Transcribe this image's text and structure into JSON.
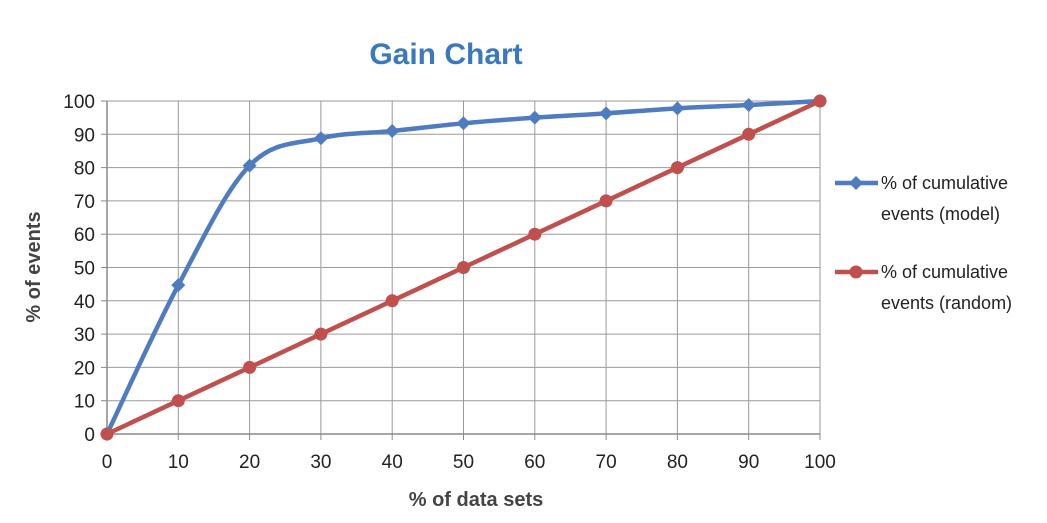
{
  "colors": {
    "title": "#3a78c0",
    "model": "#4f7bc0",
    "random": "#c0504d",
    "grid": "#9a9a9a",
    "axis": "#8a8a8a"
  },
  "chart_data": {
    "type": "line",
    "title": "Gain Chart",
    "xlabel": "% of data sets",
    "ylabel": "% of events",
    "xlim": [
      0,
      100
    ],
    "ylim": [
      0,
      100
    ],
    "xticks": [
      "0",
      "10",
      "20",
      "30",
      "40",
      "50",
      "60",
      "70",
      "80",
      "90",
      "100"
    ],
    "yticks": [
      "0",
      "10",
      "20",
      "30",
      "40",
      "50",
      "60",
      "70",
      "80",
      "90",
      "100"
    ],
    "grid": true,
    "legend_position": "right",
    "x": [
      0,
      10,
      20,
      30,
      40,
      50,
      60,
      70,
      80,
      90,
      100
    ],
    "series": [
      {
        "name": "% of cumulative events (model)",
        "legend_lines": [
          "% of cumulative",
          "events (model)"
        ],
        "marker": "diamond",
        "color": "#4f7bc0",
        "values": [
          0,
          44.7,
          80.6,
          88.8,
          91,
          93.3,
          95,
          96.3,
          97.8,
          98.8,
          100
        ]
      },
      {
        "name": "% of cumulative events (random)",
        "legend_lines": [
          "% of cumulative",
          "events (random)"
        ],
        "marker": "circle",
        "color": "#c0504d",
        "values": [
          0,
          10,
          20,
          30,
          40,
          50,
          60,
          70,
          80,
          90,
          100
        ]
      }
    ]
  }
}
